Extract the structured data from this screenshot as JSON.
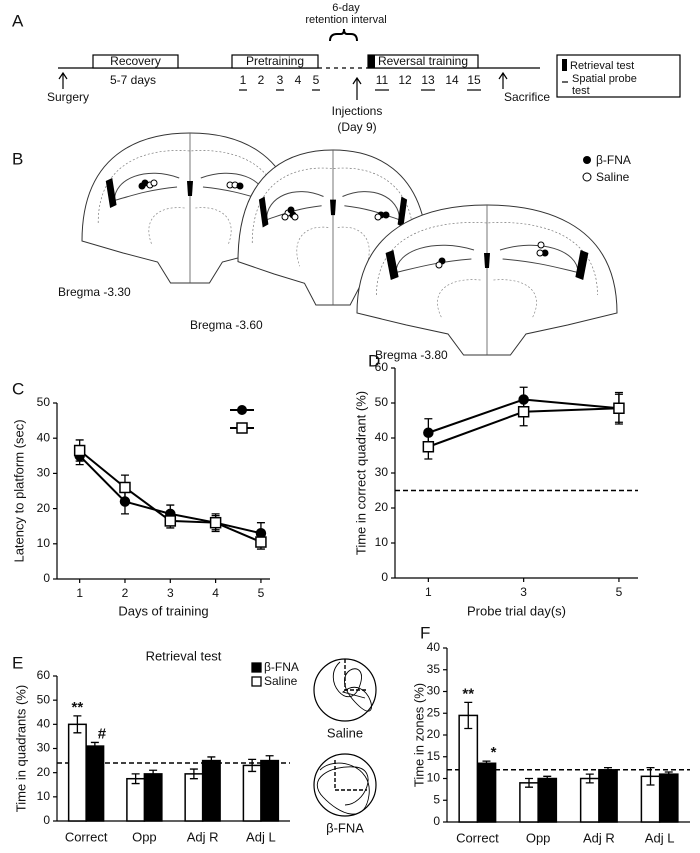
{
  "timeline": {
    "panel": "A",
    "interval": [
      "6-day",
      "retention interval"
    ],
    "recovery": "Recovery",
    "recovery_duration": "5-7 days",
    "pretraining": "Pretraining",
    "pretraining_days": [
      "1",
      "2",
      "3",
      "4",
      "5"
    ],
    "reversal": "Reversal training",
    "reversal_days": [
      "11",
      "12",
      "13",
      "14",
      "15"
    ],
    "probe_underline": [
      true,
      false,
      true,
      false,
      true
    ],
    "surgery": "Surgery",
    "injections": [
      "Injections",
      "(Day 9)"
    ],
    "sacrifice": "Sacrifice",
    "legend_retrieval": "Retrieval test",
    "legend_probe": [
      "Spatial probe",
      "test"
    ]
  },
  "sections": {
    "panel": "B",
    "legend": [
      "β-FNA",
      "Saline"
    ],
    "labels": [
      "Bregma -3.30",
      "Bregma -3.60",
      "Bregma -3.80"
    ]
  },
  "chart_data": [
    {
      "type": "line",
      "panel": "C",
      "x": [
        1,
        2,
        3,
        4,
        5
      ],
      "xlim": [
        0.5,
        5.2
      ],
      "xticks": [
        1,
        2,
        3,
        4,
        5
      ],
      "ylim": [
        0,
        50
      ],
      "yticks": [
        0,
        10,
        20,
        30,
        40,
        50
      ],
      "xlabel": "Days of training",
      "ylabel": "Latency to platform (sec)",
      "legend": "upper right",
      "series": [
        {
          "name": "β-FNA",
          "color": "#000000",
          "marker": "circle",
          "filled": true,
          "values": [
            35,
            22,
            18.5,
            16,
            13
          ],
          "errors": [
            2.5,
            3.5,
            2.5,
            2.5,
            3
          ]
        },
        {
          "name": "Saline",
          "color": "#000000",
          "marker": "square",
          "filled": false,
          "values": [
            36.5,
            26,
            16.5,
            16,
            10.5
          ],
          "errors": [
            3,
            3.5,
            2,
            2,
            2
          ]
        }
      ]
    },
    {
      "type": "line",
      "panel": "D",
      "x": [
        1,
        3,
        5
      ],
      "xlim": [
        0.3,
        5.4
      ],
      "xticks": [
        1,
        3,
        5
      ],
      "ylim": [
        0,
        60
      ],
      "yticks": [
        0,
        10,
        20,
        30,
        40,
        50,
        60
      ],
      "xlabel": "Probe trial day(s)",
      "ylabel": "Time in correct quadrant (%)",
      "reference_line": 25,
      "series": [
        {
          "color": "#000000",
          "marker": "circle",
          "filled": true,
          "values": [
            41.5,
            51,
            48.5
          ],
          "errors": [
            4,
            3.5,
            4
          ]
        },
        {
          "color": "#000000",
          "marker": "square",
          "filled": false,
          "values": [
            37.5,
            47.5,
            48.5
          ],
          "errors": [
            3.5,
            4,
            4.5
          ]
        }
      ]
    },
    {
      "type": "bar",
      "panel": "E",
      "title": "Retrieval test",
      "categories": [
        "Correct",
        "Opp",
        "Adj R",
        "Adj L"
      ],
      "ylim": [
        0,
        60
      ],
      "yticks": [
        0,
        10,
        20,
        30,
        40,
        50,
        60
      ],
      "ylabel": "Time in quadrants (%)",
      "reference_line": 24,
      "legend": "upper right",
      "insets": [
        "Saline",
        "β-FNA"
      ],
      "series": [
        {
          "name": "β-FNA",
          "color": "#000000",
          "filled": true,
          "values": [
            31,
            19.5,
            25,
            25
          ],
          "errors": [
            1.5,
            1.5,
            1.5,
            2
          ],
          "significance": [
            "#",
            null,
            null,
            null
          ]
        },
        {
          "name": "Saline",
          "color": "#000000",
          "filled": false,
          "values": [
            40,
            17.5,
            19.5,
            23
          ],
          "errors": [
            3.5,
            2,
            2,
            2.5
          ],
          "significance": [
            "**",
            null,
            null,
            null
          ]
        }
      ]
    },
    {
      "type": "bar",
      "panel": "F",
      "categories": [
        "Correct",
        "Opp",
        "Adj R",
        "Adj L"
      ],
      "ylim": [
        0,
        40
      ],
      "yticks": [
        0,
        5,
        10,
        15,
        20,
        25,
        30,
        35,
        40
      ],
      "ylabel": "Time in zones (%)",
      "reference_line": 12,
      "series": [
        {
          "color": "#000000",
          "filled": true,
          "values": [
            13.5,
            10,
            12,
            11
          ],
          "errors": [
            0.5,
            0.5,
            0.5,
            0.5
          ],
          "significance": [
            "*",
            null,
            null,
            null
          ]
        },
        {
          "color": "#000000",
          "filled": false,
          "values": [
            24.5,
            9,
            10,
            10.5
          ],
          "errors": [
            3,
            1,
            1,
            2
          ],
          "significance": [
            "**",
            null,
            null,
            null
          ]
        }
      ]
    }
  ]
}
